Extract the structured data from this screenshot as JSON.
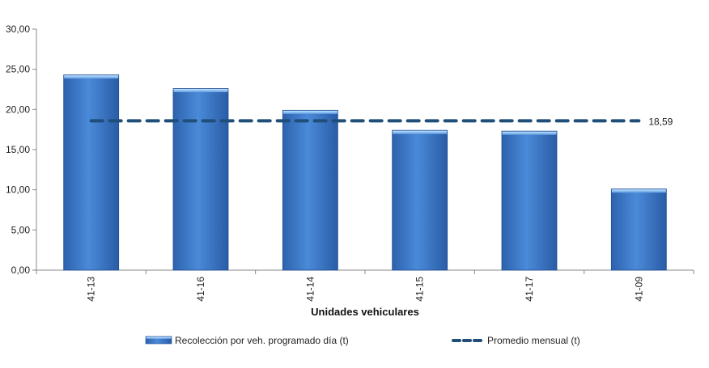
{
  "chart_data": {
    "type": "bar",
    "categories": [
      "41-13",
      "41-16",
      "41-14",
      "41-15",
      "41-17",
      "41-09"
    ],
    "series": [
      {
        "name": "Recolección por veh. programado día (t)",
        "type": "bar",
        "values": [
          24.3,
          22.6,
          19.9,
          17.4,
          17.3,
          10.1
        ]
      },
      {
        "name": "Promedio mensual (t)",
        "type": "line",
        "style": "dashed",
        "values": [
          18.59,
          18.59,
          18.59,
          18.59,
          18.59,
          18.59
        ],
        "data_label": "18,59"
      }
    ],
    "title": "",
    "xlabel": "Unidades vehiculares",
    "ylabel": "",
    "ylim": [
      0,
      30
    ],
    "yticks": [
      "0,00",
      "5,00",
      "10,00",
      "15,00",
      "20,00",
      "25,00",
      "30,00"
    ],
    "grid": false,
    "legend": "bottom",
    "colors": {
      "bar": "#3a78c8",
      "bar_dark": "#1f4f96",
      "bar_light": "#8fc0f0",
      "line": "#1f4e79",
      "axis": "#888888"
    }
  }
}
